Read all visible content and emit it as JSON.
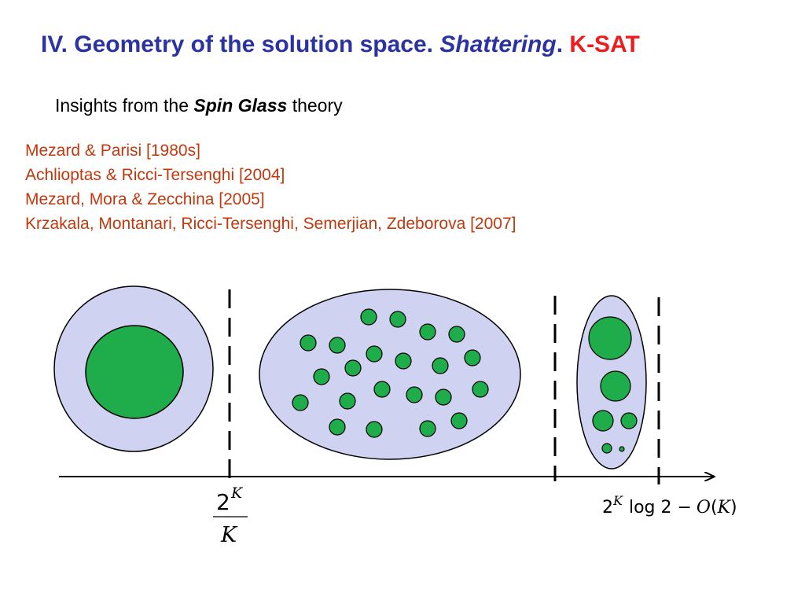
{
  "title": {
    "part1": "IV. Geometry of the solution space.",
    "part2": "Shattering",
    "part3": ".",
    "part4": "K-SAT"
  },
  "subtitle": {
    "before": "Insights from the",
    "emph": "Spin Glass",
    "after": "theory"
  },
  "references": [
    "Mezard & Parisi [1980s]",
    "Achlioptas & Ricci-Tersenghi [2004]",
    "Mezard, Mora & Zecchina [2005]",
    "Krzakala, Montanari, Ricci-Tersenghi, Semerjian, Zdeborova [2007]"
  ],
  "threshold1": {
    "numerator_base": "2",
    "numerator_exp": "K",
    "denominator": "K"
  },
  "threshold2": {
    "base": "2",
    "exp": "K",
    "log": "log 2",
    "minus": "−",
    "O": "O",
    "open": "(",
    "K": "K",
    "close": ")"
  },
  "colors": {
    "title": "#2b33a3",
    "accent_red": "#ee1c1c",
    "references": "#c0390e",
    "space_fill": "#cfd2f0",
    "cluster_fill": "#1fac4b"
  }
}
